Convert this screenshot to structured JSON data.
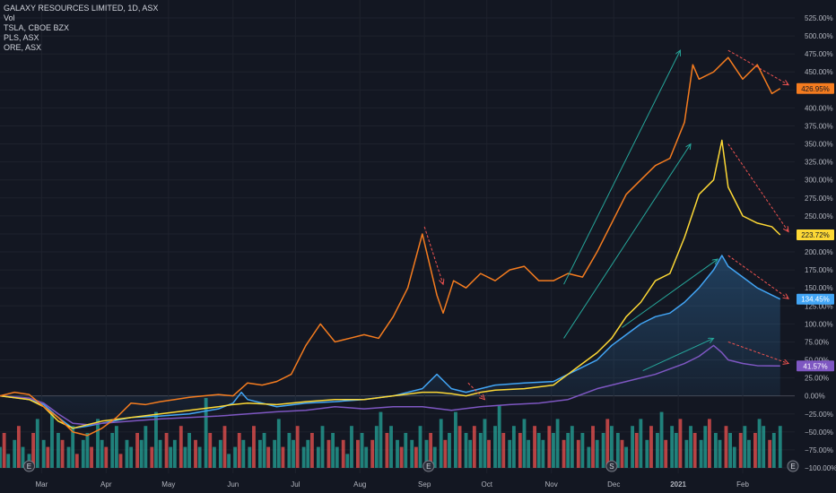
{
  "legend": {
    "main": "GALAXY RESOURCES LIMITED, 1D, ASX",
    "vol": "Vol",
    "s1": "TSLA, CBOE BZX",
    "s2": "PLS, ASX",
    "s3": "ORE, ASX"
  },
  "colors": {
    "background": "#131722",
    "grid": "#1e222d",
    "text": "#b2b5be",
    "TSLA": "#f57c1f",
    "PLS": "#fdd835",
    "GXY": "#42a5f5",
    "ORE": "#7e57c2",
    "up_arrow": "#26a69a",
    "down_arrow": "#ef5350",
    "vol_up": "#26a69a",
    "vol_down": "#ef5350",
    "badge_text_dark": "#131722"
  },
  "markers": [
    "E",
    "E",
    "S",
    "E"
  ],
  "chart_data": {
    "type": "line",
    "title": "GALAXY RESOURCES LIMITED, 1D, ASX",
    "y_unit": "%",
    "ylim": [
      -100,
      525
    ],
    "y_ticks": [
      525,
      500,
      475,
      450,
      425,
      400,
      375,
      350,
      325,
      300,
      275,
      250,
      225,
      200,
      175,
      150,
      125,
      100,
      75,
      50,
      25,
      0,
      -25,
      -50,
      -75,
      -100
    ],
    "y_tick_labels": [
      "525.00%",
      "500.00%",
      "475.00%",
      "450.00%",
      "425.00%",
      "400.00%",
      "375.00%",
      "350.00%",
      "325.00%",
      "300.00%",
      "275.00%",
      "250.00%",
      "225.00%",
      "200.00%",
      "175.00%",
      "150.00%",
      "125.00%",
      "100.00%",
      "75.00%",
      "50.00%",
      "25.00%",
      "0.00%",
      "−25.00%",
      "−50.00%",
      "−75.00%",
      "−100.00%"
    ],
    "x_range": [
      "2020-02-10",
      "2021-02-26"
    ],
    "x_ticks": [
      {
        "date": "2020-03-01",
        "label": "Mar",
        "bold": false
      },
      {
        "date": "2020-04-01",
        "label": "Apr",
        "bold": false
      },
      {
        "date": "2020-05-01",
        "label": "May",
        "bold": false
      },
      {
        "date": "2020-06-01",
        "label": "Jun",
        "bold": false
      },
      {
        "date": "2020-07-01",
        "label": "Jul",
        "bold": false
      },
      {
        "date": "2020-08-01",
        "label": "Aug",
        "bold": false
      },
      {
        "date": "2020-09-01",
        "label": "Sep",
        "bold": false
      },
      {
        "date": "2020-10-01",
        "label": "Oct",
        "bold": false
      },
      {
        "date": "2020-11-01",
        "label": "Nov",
        "bold": false
      },
      {
        "date": "2020-12-01",
        "label": "Dec",
        "bold": false
      },
      {
        "date": "2021-01-01",
        "label": "2021",
        "bold": true
      },
      {
        "date": "2021-02-01",
        "label": "Feb",
        "bold": false
      }
    ],
    "series": [
      {
        "key": "TSLA",
        "last_label": "426.95%",
        "values": [
          [
            "2020-02-10",
            0
          ],
          [
            "2020-02-17",
            5
          ],
          [
            "2020-02-24",
            2
          ],
          [
            "2020-03-02",
            -15
          ],
          [
            "2020-03-09",
            -30
          ],
          [
            "2020-03-16",
            -50
          ],
          [
            "2020-03-23",
            -55
          ],
          [
            "2020-03-30",
            -45
          ],
          [
            "2020-04-06",
            -30
          ],
          [
            "2020-04-13",
            -10
          ],
          [
            "2020-04-20",
            -12
          ],
          [
            "2020-04-27",
            -8
          ],
          [
            "2020-05-04",
            -5
          ],
          [
            "2020-05-11",
            -2
          ],
          [
            "2020-05-18",
            0
          ],
          [
            "2020-05-25",
            2
          ],
          [
            "2020-06-01",
            0
          ],
          [
            "2020-06-08",
            18
          ],
          [
            "2020-06-15",
            15
          ],
          [
            "2020-06-22",
            20
          ],
          [
            "2020-06-29",
            30
          ],
          [
            "2020-07-06",
            70
          ],
          [
            "2020-07-13",
            100
          ],
          [
            "2020-07-20",
            75
          ],
          [
            "2020-07-27",
            80
          ],
          [
            "2020-08-03",
            85
          ],
          [
            "2020-08-10",
            80
          ],
          [
            "2020-08-17",
            110
          ],
          [
            "2020-08-24",
            150
          ],
          [
            "2020-08-31",
            225
          ],
          [
            "2020-09-07",
            140
          ],
          [
            "2020-09-10",
            115
          ],
          [
            "2020-09-15",
            160
          ],
          [
            "2020-09-21",
            150
          ],
          [
            "2020-09-28",
            170
          ],
          [
            "2020-10-05",
            160
          ],
          [
            "2020-10-12",
            175
          ],
          [
            "2020-10-19",
            180
          ],
          [
            "2020-10-26",
            160
          ],
          [
            "2020-11-02",
            160
          ],
          [
            "2020-11-09",
            170
          ],
          [
            "2020-11-16",
            165
          ],
          [
            "2020-11-23",
            200
          ],
          [
            "2020-11-30",
            240
          ],
          [
            "2020-12-07",
            280
          ],
          [
            "2020-12-14",
            300
          ],
          [
            "2020-12-21",
            320
          ],
          [
            "2020-12-28",
            330
          ],
          [
            "2021-01-04",
            380
          ],
          [
            "2021-01-08",
            460
          ],
          [
            "2021-01-11",
            440
          ],
          [
            "2021-01-18",
            450
          ],
          [
            "2021-01-25",
            470
          ],
          [
            "2021-02-01",
            440
          ],
          [
            "2021-02-08",
            460
          ],
          [
            "2021-02-15",
            420
          ],
          [
            "2021-02-19",
            426.95
          ]
        ]
      },
      {
        "key": "PLS",
        "last_label": "223.72%",
        "values": [
          [
            "2020-02-10",
            0
          ],
          [
            "2020-02-24",
            -5
          ],
          [
            "2020-03-02",
            -15
          ],
          [
            "2020-03-09",
            -35
          ],
          [
            "2020-03-16",
            -45
          ],
          [
            "2020-03-23",
            -40
          ],
          [
            "2020-03-30",
            -35
          ],
          [
            "2020-04-13",
            -30
          ],
          [
            "2020-04-27",
            -25
          ],
          [
            "2020-05-11",
            -20
          ],
          [
            "2020-05-25",
            -15
          ],
          [
            "2020-06-01",
            -12
          ],
          [
            "2020-06-08",
            -10
          ],
          [
            "2020-06-22",
            -12
          ],
          [
            "2020-07-06",
            -8
          ],
          [
            "2020-07-20",
            -5
          ],
          [
            "2020-08-03",
            -5
          ],
          [
            "2020-08-17",
            0
          ],
          [
            "2020-08-31",
            5
          ],
          [
            "2020-09-07",
            5
          ],
          [
            "2020-09-14",
            3
          ],
          [
            "2020-09-21",
            0
          ],
          [
            "2020-09-28",
            5
          ],
          [
            "2020-10-05",
            8
          ],
          [
            "2020-10-19",
            10
          ],
          [
            "2020-11-02",
            15
          ],
          [
            "2020-11-09",
            30
          ],
          [
            "2020-11-16",
            45
          ],
          [
            "2020-11-23",
            60
          ],
          [
            "2020-11-30",
            80
          ],
          [
            "2020-12-07",
            110
          ],
          [
            "2020-12-14",
            130
          ],
          [
            "2020-12-21",
            160
          ],
          [
            "2020-12-28",
            170
          ],
          [
            "2021-01-04",
            220
          ],
          [
            "2021-01-11",
            280
          ],
          [
            "2021-01-18",
            300
          ],
          [
            "2021-01-22",
            355
          ],
          [
            "2021-01-25",
            290
          ],
          [
            "2021-02-01",
            250
          ],
          [
            "2021-02-08",
            240
          ],
          [
            "2021-02-15",
            235
          ],
          [
            "2021-02-19",
            223.72
          ]
        ]
      },
      {
        "key": "GXY",
        "last_label": "134.45%",
        "values": [
          [
            "2020-02-10",
            0
          ],
          [
            "2020-02-24",
            -5
          ],
          [
            "2020-03-02",
            -12
          ],
          [
            "2020-03-09",
            -30
          ],
          [
            "2020-03-16",
            -45
          ],
          [
            "2020-03-23",
            -42
          ],
          [
            "2020-03-30",
            -38
          ],
          [
            "2020-04-13",
            -30
          ],
          [
            "2020-04-27",
            -28
          ],
          [
            "2020-05-11",
            -25
          ],
          [
            "2020-05-25",
            -18
          ],
          [
            "2020-06-01",
            -10
          ],
          [
            "2020-06-05",
            5
          ],
          [
            "2020-06-08",
            -5
          ],
          [
            "2020-06-22",
            -15
          ],
          [
            "2020-07-06",
            -10
          ],
          [
            "2020-07-20",
            -8
          ],
          [
            "2020-08-03",
            -5
          ],
          [
            "2020-08-17",
            0
          ],
          [
            "2020-08-31",
            10
          ],
          [
            "2020-09-07",
            30
          ],
          [
            "2020-09-14",
            10
          ],
          [
            "2020-09-21",
            5
          ],
          [
            "2020-09-28",
            10
          ],
          [
            "2020-10-05",
            15
          ],
          [
            "2020-10-19",
            18
          ],
          [
            "2020-11-02",
            20
          ],
          [
            "2020-11-09",
            30
          ],
          [
            "2020-11-16",
            40
          ],
          [
            "2020-11-23",
            50
          ],
          [
            "2020-11-30",
            70
          ],
          [
            "2020-12-07",
            85
          ],
          [
            "2020-12-14",
            100
          ],
          [
            "2020-12-21",
            110
          ],
          [
            "2020-12-28",
            115
          ],
          [
            "2021-01-04",
            130
          ],
          [
            "2021-01-11",
            150
          ],
          [
            "2021-01-18",
            175
          ],
          [
            "2021-01-22",
            195
          ],
          [
            "2021-01-25",
            180
          ],
          [
            "2021-02-01",
            165
          ],
          [
            "2021-02-08",
            150
          ],
          [
            "2021-02-15",
            140
          ],
          [
            "2021-02-19",
            134.45
          ]
        ]
      },
      {
        "key": "ORE",
        "last_label": "41.57%",
        "values": [
          [
            "2020-02-10",
            0
          ],
          [
            "2020-02-24",
            -3
          ],
          [
            "2020-03-02",
            -10
          ],
          [
            "2020-03-09",
            -25
          ],
          [
            "2020-03-16",
            -38
          ],
          [
            "2020-03-23",
            -40
          ],
          [
            "2020-03-30",
            -38
          ],
          [
            "2020-04-13",
            -35
          ],
          [
            "2020-04-27",
            -32
          ],
          [
            "2020-05-11",
            -30
          ],
          [
            "2020-05-25",
            -28
          ],
          [
            "2020-06-08",
            -25
          ],
          [
            "2020-06-22",
            -22
          ],
          [
            "2020-07-06",
            -20
          ],
          [
            "2020-07-20",
            -15
          ],
          [
            "2020-08-03",
            -18
          ],
          [
            "2020-08-17",
            -15
          ],
          [
            "2020-08-31",
            -15
          ],
          [
            "2020-09-14",
            -20
          ],
          [
            "2020-09-28",
            -15
          ],
          [
            "2020-10-12",
            -12
          ],
          [
            "2020-10-26",
            -10
          ],
          [
            "2020-11-09",
            -5
          ],
          [
            "2020-11-23",
            10
          ],
          [
            "2020-12-07",
            20
          ],
          [
            "2020-12-21",
            30
          ],
          [
            "2021-01-04",
            45
          ],
          [
            "2021-01-11",
            55
          ],
          [
            "2021-01-18",
            70
          ],
          [
            "2021-01-22",
            60
          ],
          [
            "2021-01-25",
            50
          ],
          [
            "2021-02-01",
            45
          ],
          [
            "2021-02-08",
            42
          ],
          [
            "2021-02-19",
            41.57
          ]
        ]
      }
    ],
    "volume": {
      "start": "2020-02-10",
      "end": "2021-02-19",
      "relative_heights": [
        0.3,
        0.5,
        0.2,
        0.4,
        0.6,
        0.3,
        0.2,
        0.5,
        0.7,
        0.4,
        0.3,
        0.8,
        0.5,
        0.4,
        0.3,
        0.6,
        0.2,
        0.4,
        0.5,
        0.3,
        0.7,
        0.4,
        0.3,
        0.5,
        0.6,
        0.2,
        0.4,
        0.3,
        0.5,
        0.4,
        0.6,
        0.3,
        0.8,
        0.4,
        0.5,
        0.3,
        0.4,
        0.6,
        0.3,
        0.5,
        0.4,
        0.3,
        1.0,
        0.5,
        0.3,
        0.4,
        0.6,
        0.2,
        0.3,
        0.5,
        0.4,
        0.3,
        0.6,
        0.4,
        0.5,
        0.3,
        0.4,
        0.7,
        0.3,
        0.5,
        0.4,
        0.6,
        0.3,
        0.4,
        0.5,
        0.3,
        0.6,
        0.4,
        0.5,
        0.3,
        0.4,
        0.2,
        0.6,
        0.4,
        0.5,
        0.3,
        0.4,
        0.6,
        0.8,
        0.5,
        0.6,
        0.4,
        0.3,
        0.5,
        0.4,
        0.3,
        0.6,
        0.4,
        0.5,
        0.3,
        0.7,
        0.4,
        0.5,
        0.8,
        0.6,
        0.5,
        0.4,
        0.6,
        0.5,
        0.7,
        0.4,
        0.6,
        0.9,
        0.5,
        0.4,
        0.6,
        0.5,
        0.7,
        0.4,
        0.6,
        0.5,
        0.4,
        0.6,
        0.5,
        0.7,
        0.4,
        0.5,
        0.6,
        0.4,
        0.5,
        0.3,
        0.6,
        0.4,
        0.5,
        0.7,
        0.6,
        0.5,
        0.4,
        0.3,
        0.6,
        0.5,
        0.7,
        0.4,
        0.6,
        0.5,
        0.8,
        0.4,
        0.6,
        0.5,
        0.7,
        0.4,
        0.6,
        0.5,
        0.4,
        0.6,
        0.7,
        0.5,
        0.4,
        0.6,
        0.5,
        0.3,
        0.5,
        0.6,
        0.4,
        0.5,
        0.7,
        0.6,
        0.4,
        0.5,
        0.6
      ]
    },
    "trend_arrows": [
      {
        "color": "up",
        "from": [
          "2020-11-07",
          155
        ],
        "to": [
          "2021-01-02",
          480
        ]
      },
      {
        "color": "up",
        "from": [
          "2020-11-07",
          80
        ],
        "to": [
          "2021-01-07",
          350
        ]
      },
      {
        "color": "up",
        "from": [
          "2020-12-05",
          95
        ],
        "to": [
          "2021-01-20",
          190
        ]
      },
      {
        "color": "up",
        "from": [
          "2020-12-15",
          35
        ],
        "to": [
          "2021-01-18",
          80
        ]
      },
      {
        "color": "down",
        "from": [
          "2020-09-01",
          235
        ],
        "to": [
          "2020-09-10",
          155
        ]
      },
      {
        "color": "down",
        "from": [
          "2020-09-22",
          18
        ],
        "to": [
          "2020-09-30",
          -5
        ]
      },
      {
        "color": "down",
        "from": [
          "2021-01-25",
          480
        ],
        "to": [
          "2021-02-23",
          432
        ]
      },
      {
        "color": "down",
        "from": [
          "2021-01-25",
          350
        ],
        "to": [
          "2021-02-23",
          228
        ]
      },
      {
        "color": "down",
        "from": [
          "2021-01-25",
          195
        ],
        "to": [
          "2021-02-23",
          135
        ]
      },
      {
        "color": "down",
        "from": [
          "2021-01-25",
          75
        ],
        "to": [
          "2021-02-23",
          45
        ]
      }
    ]
  }
}
